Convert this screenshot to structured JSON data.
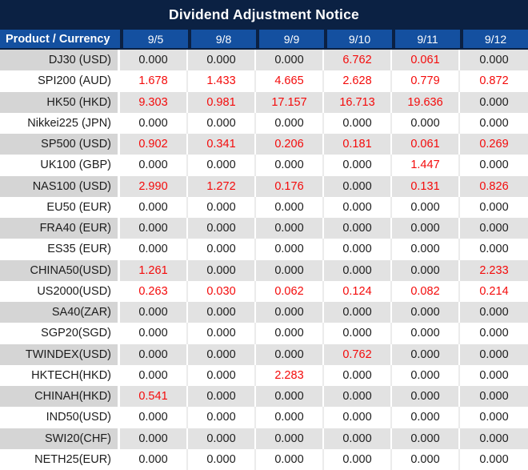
{
  "title": "Dividend Adjustment Notice",
  "colors": {
    "title_bg": "#0b2143",
    "header_bg": "#1450a0",
    "header_sep": "#0b2143",
    "header_text": "#ffffff",
    "row_gray_product": "#d5d5d5",
    "row_gray_value": "#e2e2e2",
    "row_white": "#ffffff",
    "text_black": "#1c1c1c",
    "text_red": "#f40b0b"
  },
  "table": {
    "product_column_header": "Product / Currency",
    "date_columns": [
      "9/5",
      "9/8",
      "9/9",
      "9/10",
      "9/11",
      "9/12"
    ],
    "rows": [
      {
        "product": "DJ30 (USD)",
        "values": [
          "0.000",
          "0.000",
          "0.000",
          "6.762",
          "0.061",
          "0.000"
        ],
        "red": [
          false,
          false,
          false,
          true,
          true,
          false
        ]
      },
      {
        "product": "SPI200 (AUD)",
        "values": [
          "1.678",
          "1.433",
          "4.665",
          "2.628",
          "0.779",
          "0.872"
        ],
        "red": [
          true,
          true,
          true,
          true,
          true,
          true
        ]
      },
      {
        "product": "HK50 (HKD)",
        "values": [
          "9.303",
          "0.981",
          "17.157",
          "16.713",
          "19.636",
          "0.000"
        ],
        "red": [
          true,
          true,
          true,
          true,
          true,
          false
        ]
      },
      {
        "product": "Nikkei225 (JPN)",
        "values": [
          "0.000",
          "0.000",
          "0.000",
          "0.000",
          "0.000",
          "0.000"
        ],
        "red": [
          false,
          false,
          false,
          false,
          false,
          false
        ]
      },
      {
        "product": "SP500 (USD)",
        "values": [
          "0.902",
          "0.341",
          "0.206",
          "0.181",
          "0.061",
          "0.269"
        ],
        "red": [
          true,
          true,
          true,
          true,
          true,
          true
        ]
      },
      {
        "product": "UK100 (GBP)",
        "values": [
          "0.000",
          "0.000",
          "0.000",
          "0.000",
          "1.447",
          "0.000"
        ],
        "red": [
          false,
          false,
          false,
          false,
          true,
          false
        ]
      },
      {
        "product": "NAS100 (USD)",
        "values": [
          "2.990",
          "1.272",
          "0.176",
          "0.000",
          "0.131",
          "0.826"
        ],
        "red": [
          true,
          true,
          true,
          false,
          true,
          true
        ]
      },
      {
        "product": "EU50 (EUR)",
        "values": [
          "0.000",
          "0.000",
          "0.000",
          "0.000",
          "0.000",
          "0.000"
        ],
        "red": [
          false,
          false,
          false,
          false,
          false,
          false
        ]
      },
      {
        "product": "FRA40 (EUR)",
        "values": [
          "0.000",
          "0.000",
          "0.000",
          "0.000",
          "0.000",
          "0.000"
        ],
        "red": [
          false,
          false,
          false,
          false,
          false,
          false
        ]
      },
      {
        "product": "ES35 (EUR)",
        "values": [
          "0.000",
          "0.000",
          "0.000",
          "0.000",
          "0.000",
          "0.000"
        ],
        "red": [
          false,
          false,
          false,
          false,
          false,
          false
        ]
      },
      {
        "product": "CHINA50(USD)",
        "values": [
          "1.261",
          "0.000",
          "0.000",
          "0.000",
          "0.000",
          "2.233"
        ],
        "red": [
          true,
          false,
          false,
          false,
          false,
          true
        ]
      },
      {
        "product": "US2000(USD)",
        "values": [
          "0.263",
          "0.030",
          "0.062",
          "0.124",
          "0.082",
          "0.214"
        ],
        "red": [
          true,
          true,
          true,
          true,
          true,
          true
        ]
      },
      {
        "product": "SA40(ZAR)",
        "values": [
          "0.000",
          "0.000",
          "0.000",
          "0.000",
          "0.000",
          "0.000"
        ],
        "red": [
          false,
          false,
          false,
          false,
          false,
          false
        ]
      },
      {
        "product": "SGP20(SGD)",
        "values": [
          "0.000",
          "0.000",
          "0.000",
          "0.000",
          "0.000",
          "0.000"
        ],
        "red": [
          false,
          false,
          false,
          false,
          false,
          false
        ]
      },
      {
        "product": "TWINDEX(USD)",
        "values": [
          "0.000",
          "0.000",
          "0.000",
          "0.762",
          "0.000",
          "0.000"
        ],
        "red": [
          false,
          false,
          false,
          true,
          false,
          false
        ]
      },
      {
        "product": "HKTECH(HKD)",
        "values": [
          "0.000",
          "0.000",
          "2.283",
          "0.000",
          "0.000",
          "0.000"
        ],
        "red": [
          false,
          false,
          true,
          false,
          false,
          false
        ]
      },
      {
        "product": "CHINAH(HKD)",
        "values": [
          "0.541",
          "0.000",
          "0.000",
          "0.000",
          "0.000",
          "0.000"
        ],
        "red": [
          true,
          false,
          false,
          false,
          false,
          false
        ]
      },
      {
        "product": "IND50(USD)",
        "values": [
          "0.000",
          "0.000",
          "0.000",
          "0.000",
          "0.000",
          "0.000"
        ],
        "red": [
          false,
          false,
          false,
          false,
          false,
          false
        ]
      },
      {
        "product": "SWI20(CHF)",
        "values": [
          "0.000",
          "0.000",
          "0.000",
          "0.000",
          "0.000",
          "0.000"
        ],
        "red": [
          false,
          false,
          false,
          false,
          false,
          false
        ]
      },
      {
        "product": "NETH25(EUR)",
        "values": [
          "0.000",
          "0.000",
          "0.000",
          "0.000",
          "0.000",
          "0.000"
        ],
        "red": [
          false,
          false,
          false,
          false,
          false,
          false
        ]
      }
    ]
  }
}
